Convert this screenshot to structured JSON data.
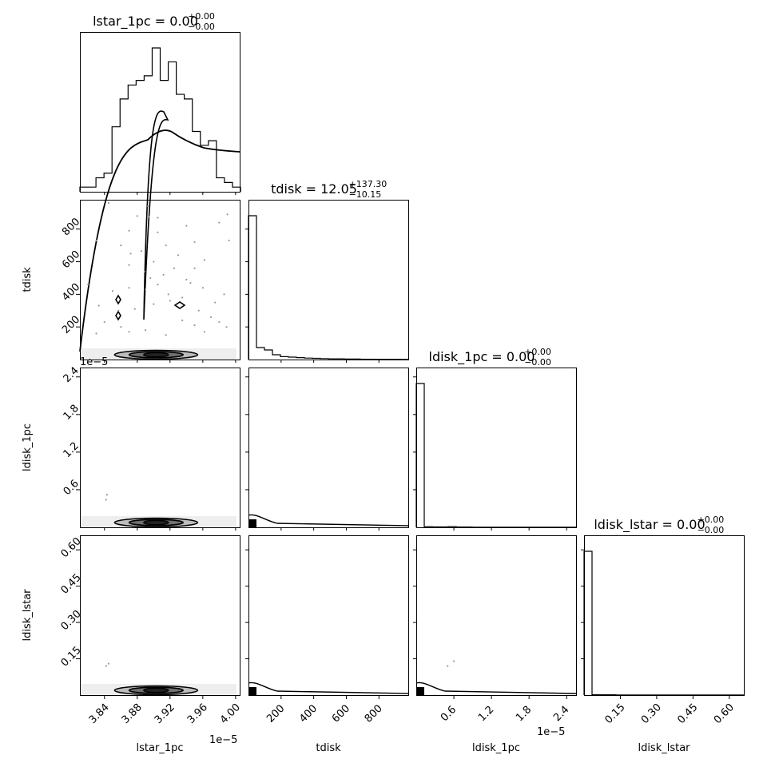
{
  "chart_data": {
    "type": "corner",
    "parameters": [
      "lstar_1pc",
      "tdisk",
      "ldisk_1pc",
      "ldisk_lstar"
    ],
    "titles": [
      {
        "name": "lstar_1pc",
        "median": "0.00",
        "plus": "+0.00",
        "minus": "−0.00"
      },
      {
        "name": "tdisk",
        "median": "12.05",
        "plus": "+137.30",
        "minus": "−10.15"
      },
      {
        "name": "ldisk_1pc",
        "median": "0.00",
        "plus": "+0.00",
        "minus": "−0.00"
      },
      {
        "name": "ldisk_lstar",
        "median": "0.00",
        "plus": "+0.00",
        "minus": "−0.00"
      }
    ],
    "axis_labels": {
      "x": [
        "lstar_1pc",
        "tdisk",
        "ldisk_1pc",
        "ldisk_lstar"
      ],
      "y": [
        "tdisk",
        "ldisk_1pc",
        "ldisk_lstar"
      ]
    },
    "ranges": {
      "lstar_1pc": [
        3.81,
        4.005
      ],
      "tdisk": [
        0,
        980
      ],
      "ldisk_1pc": [
        0,
        2.55
      ],
      "ldisk_lstar": [
        0,
        0.66
      ]
    },
    "ticks": {
      "lstar_1pc": [
        "3.84",
        "3.88",
        "3.92",
        "3.96",
        "4.00"
      ],
      "tdisk": [
        "200",
        "400",
        "600",
        "800"
      ],
      "ldisk_1pc": [
        "0.6",
        "1.2",
        "1.8",
        "2.4"
      ],
      "ldisk_lstar": [
        "0.15",
        "0.30",
        "0.45",
        "0.60"
      ]
    },
    "offset_text": "1e−5",
    "histograms": {
      "lstar_1pc": {
        "edges_start": 3.81,
        "bin_width": 0.0098,
        "counts": [
          1,
          1,
          3,
          4,
          14,
          20,
          23,
          24,
          25,
          31,
          24,
          28,
          21,
          20,
          13,
          10,
          11,
          3,
          2,
          1
        ]
      },
      "tdisk": {
        "edges_start": 0,
        "bin_width": 49,
        "counts": [
          60,
          5,
          4,
          2,
          1.2,
          1,
          0.8,
          0.6,
          0.5,
          0.4,
          0.3,
          0.3,
          0.2,
          0.2,
          0.15,
          0.15,
          0.1,
          0.1,
          0.08,
          0.05
        ]
      },
      "ldisk_1pc": {
        "edges_start": 0,
        "bin_width": 0.1275,
        "counts": [
          100,
          0.4,
          0.3,
          0.3,
          0.5,
          0.2,
          0.2,
          0.1,
          0.1,
          0.1,
          0.1,
          0.1,
          0.1,
          0.05,
          0.05,
          0.05,
          0.05,
          0.05,
          0.05,
          0.05
        ]
      },
      "ldisk_lstar": {
        "edges_start": 0,
        "bin_width": 0.033,
        "counts": [
          100,
          0.3,
          0.2,
          0.2,
          0.1,
          0.1,
          0.1,
          0.1,
          0.1,
          0.1,
          0.05,
          0.05,
          0.05,
          0.05,
          0.05,
          0.05,
          0.05,
          0.05,
          0.05,
          0.05
        ]
      }
    },
    "scatter_tdisk_vs_lstar": [
      [
        3.845,
        960
      ],
      [
        3.87,
        790
      ],
      [
        3.893,
        940
      ],
      [
        3.894,
        875
      ],
      [
        3.905,
        870
      ],
      [
        3.94,
        820
      ],
      [
        3.99,
        890
      ],
      [
        3.98,
        840
      ],
      [
        3.83,
        730
      ],
      [
        3.86,
        700
      ],
      [
        3.872,
        650
      ],
      [
        3.885,
        665
      ],
      [
        3.9,
        600
      ],
      [
        3.915,
        700
      ],
      [
        3.93,
        640
      ],
      [
        3.95,
        720
      ],
      [
        3.87,
        580
      ],
      [
        3.889,
        540
      ],
      [
        3.896,
        500
      ],
      [
        3.912,
        520
      ],
      [
        3.925,
        560
      ],
      [
        3.94,
        490
      ],
      [
        3.962,
        610
      ],
      [
        3.992,
        730
      ],
      [
        3.82,
        460
      ],
      [
        3.85,
        420
      ],
      [
        3.87,
        440
      ],
      [
        3.89,
        430
      ],
      [
        3.905,
        460
      ],
      [
        3.918,
        400
      ],
      [
        3.935,
        380
      ],
      [
        3.945,
        470
      ],
      [
        3.96,
        440
      ],
      [
        3.975,
        350
      ],
      [
        3.986,
        400
      ],
      [
        3.833,
        330
      ],
      [
        3.857,
        300
      ],
      [
        3.877,
        310
      ],
      [
        3.9,
        340
      ],
      [
        3.92,
        360
      ],
      [
        3.955,
        300
      ],
      [
        3.97,
        260
      ],
      [
        3.98,
        230
      ],
      [
        3.84,
        230
      ],
      [
        3.86,
        200
      ],
      [
        3.87,
        170
      ],
      [
        3.935,
        240
      ],
      [
        3.95,
        210
      ],
      [
        3.962,
        170
      ],
      [
        3.915,
        150
      ],
      [
        3.89,
        180
      ],
      [
        3.83,
        160
      ],
      [
        3.989,
        200
      ],
      [
        3.905,
        780
      ],
      [
        3.88,
        880
      ],
      [
        3.95,
        560
      ]
    ],
    "color": "#000000"
  }
}
